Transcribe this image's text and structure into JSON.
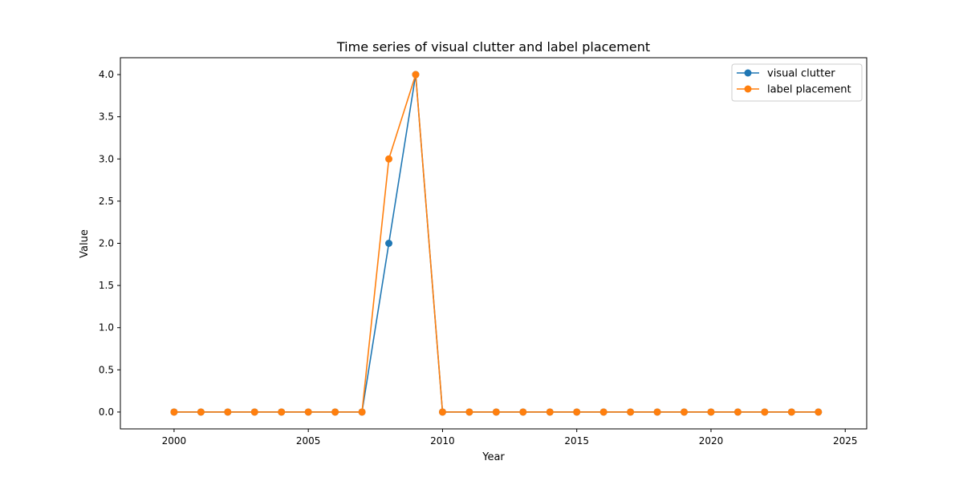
{
  "chart_data": {
    "type": "line",
    "title": "Time series of visual clutter and label placement",
    "xlabel": "Year",
    "ylabel": "Value",
    "xlim": [
      1998,
      2025.8
    ],
    "ylim": [
      -0.2,
      4.2
    ],
    "xticks": [
      2000,
      2005,
      2010,
      2015,
      2020,
      2025
    ],
    "xtick_labels": [
      "2000",
      "2005",
      "2010",
      "2015",
      "2020",
      "2025"
    ],
    "yticks": [
      0.0,
      0.5,
      1.0,
      1.5,
      2.0,
      2.5,
      3.0,
      3.5,
      4.0
    ],
    "ytick_labels": [
      "0.0",
      "0.5",
      "1.0",
      "1.5",
      "2.0",
      "2.5",
      "3.0",
      "3.5",
      "4.0"
    ],
    "grid": false,
    "legend_position": "top-right",
    "x": [
      2000,
      2001,
      2002,
      2003,
      2004,
      2005,
      2006,
      2007,
      2008,
      2009,
      2010,
      2011,
      2012,
      2013,
      2014,
      2015,
      2016,
      2017,
      2018,
      2019,
      2020,
      2021,
      2022,
      2023,
      2024
    ],
    "series": [
      {
        "name": "visual clutter",
        "color": "#1f77b4",
        "values": [
          0,
          0,
          0,
          0,
          0,
          0,
          0,
          0,
          2,
          4,
          0,
          0,
          0,
          0,
          0,
          0,
          0,
          0,
          0,
          0,
          0,
          0,
          0,
          0,
          0
        ]
      },
      {
        "name": "label placement",
        "color": "#ff7f0e",
        "values": [
          0,
          0,
          0,
          0,
          0,
          0,
          0,
          0,
          3,
          4,
          0,
          0,
          0,
          0,
          0,
          0,
          0,
          0,
          0,
          0,
          0,
          0,
          0,
          0,
          0
        ]
      }
    ]
  }
}
